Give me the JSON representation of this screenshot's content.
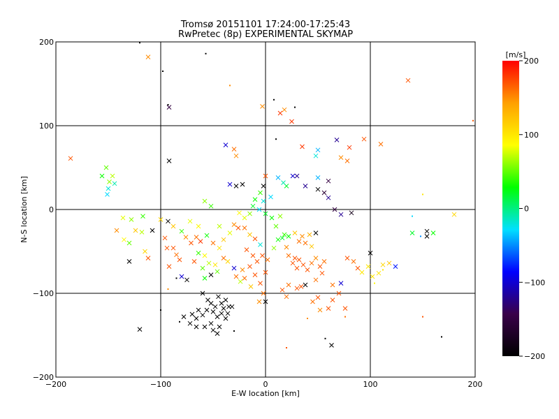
{
  "chart_data": {
    "type": "scatter",
    "title": "Tromsø 20151101 17:24:00-17:25:43",
    "subtitle": "RwPretec (8p) EXPERIMENTAL SKYMAP",
    "xlabel": "E-W location [km]",
    "ylabel": "N-S location [km]",
    "xlim": [
      -200,
      200
    ],
    "ylim": [
      -200,
      200
    ],
    "xticks": [
      -200,
      -100,
      0,
      100,
      200
    ],
    "yticks": [
      -200,
      -100,
      0,
      100,
      200
    ],
    "grid": true,
    "grid_lines": [
      -100,
      0,
      100
    ],
    "colorbar": {
      "label": "[m/s]",
      "range": [
        -200,
        200
      ],
      "ticks": [
        -200,
        -100,
        0,
        100,
        200
      ],
      "colors": [
        "#000000",
        "#3a004a",
        "#0000ff",
        "#00e0ff",
        "#00ff00",
        "#ffff00",
        "#ffa000",
        "#ff0000"
      ]
    },
    "markers": [
      "x",
      "dot"
    ],
    "points": [
      [
        -120,
        199,
        -200,
        "dot"
      ],
      [
        -112,
        182,
        150,
        "x"
      ],
      [
        -57,
        186,
        -200,
        "dot"
      ],
      [
        -98,
        165,
        -200,
        "dot"
      ],
      [
        -92,
        122,
        -150,
        "x"
      ],
      [
        -93,
        125,
        -200,
        "dot"
      ],
      [
        -34,
        148,
        150,
        "dot"
      ],
      [
        8,
        131,
        -200,
        "dot"
      ],
      [
        28,
        122,
        -200,
        "dot"
      ],
      [
        -3,
        123,
        150,
        "x"
      ],
      [
        14,
        115,
        180,
        "x"
      ],
      [
        18,
        119,
        150,
        "x"
      ],
      [
        25,
        105,
        180,
        "x"
      ],
      [
        -186,
        61,
        170,
        "x"
      ],
      [
        -92,
        58,
        -200,
        "x"
      ],
      [
        -30,
        72,
        160,
        "x"
      ],
      [
        -38,
        77,
        -100,
        "x"
      ],
      [
        -28,
        64,
        150,
        "x"
      ],
      [
        10,
        84,
        -200,
        "dot"
      ],
      [
        35,
        75,
        180,
        "x"
      ],
      [
        50,
        71,
        -40,
        "x"
      ],
      [
        68,
        83,
        -120,
        "x"
      ],
      [
        80,
        74,
        180,
        "x"
      ],
      [
        72,
        62,
        150,
        "x"
      ],
      [
        78,
        58,
        160,
        "x"
      ],
      [
        94,
        84,
        170,
        "x"
      ],
      [
        110,
        78,
        160,
        "x"
      ],
      [
        136,
        154,
        170,
        "x"
      ],
      [
        198,
        106,
        170,
        "dot"
      ],
      [
        -152,
        50,
        50,
        "x"
      ],
      [
        -156,
        40,
        30,
        "x"
      ],
      [
        -146,
        40,
        70,
        "x"
      ],
      [
        -149,
        33,
        60,
        "x"
      ],
      [
        -144,
        31,
        -10,
        "x"
      ],
      [
        -150,
        25,
        -20,
        "x"
      ],
      [
        -151,
        18,
        -30,
        "x"
      ],
      [
        -136,
        -10,
        80,
        "x"
      ],
      [
        -142,
        -25,
        150,
        "x"
      ],
      [
        -128,
        -12,
        60,
        "x"
      ],
      [
        -124,
        -25,
        120,
        "x"
      ],
      [
        -135,
        -36,
        90,
        "x"
      ],
      [
        -130,
        -40,
        50,
        "x"
      ],
      [
        -118,
        -27,
        70,
        "x"
      ],
      [
        -115,
        -50,
        110,
        "x"
      ],
      [
        -112,
        -58,
        170,
        "x"
      ],
      [
        -130,
        -62,
        -200,
        "x"
      ],
      [
        -117,
        -8,
        40,
        "x"
      ],
      [
        -108,
        -25,
        -200,
        "x"
      ],
      [
        -100,
        -12,
        110,
        "x"
      ],
      [
        -93,
        -14,
        -200,
        "x"
      ],
      [
        -88,
        -20,
        120,
        "x"
      ],
      [
        -96,
        -34,
        170,
        "x"
      ],
      [
        -94,
        -46,
        170,
        "x"
      ],
      [
        -88,
        -46,
        170,
        "x"
      ],
      [
        -85,
        -54,
        160,
        "x"
      ],
      [
        -80,
        -26,
        40,
        "x"
      ],
      [
        -76,
        -33,
        150,
        "x"
      ],
      [
        -71,
        -40,
        170,
        "x"
      ],
      [
        -66,
        -33,
        160,
        "x"
      ],
      [
        -62,
        -38,
        180,
        "x"
      ],
      [
        -68,
        -62,
        170,
        "x"
      ],
      [
        -82,
        -60,
        170,
        "x"
      ],
      [
        -92,
        -68,
        170,
        "x"
      ],
      [
        -80,
        -80,
        -100,
        "x"
      ],
      [
        -75,
        -84,
        -200,
        "x"
      ],
      [
        -85,
        -82,
        -200,
        "dot"
      ],
      [
        -93,
        -95,
        150,
        "dot"
      ],
      [
        -56,
        -31,
        30,
        "x"
      ],
      [
        -50,
        -40,
        160,
        "x"
      ],
      [
        -44,
        -46,
        100,
        "x"
      ],
      [
        -58,
        -55,
        90,
        "x"
      ],
      [
        -54,
        -64,
        70,
        "x"
      ],
      [
        -60,
        -70,
        50,
        "x"
      ],
      [
        -52,
        -78,
        -200,
        "x"
      ],
      [
        -48,
        -66,
        100,
        "x"
      ],
      [
        -40,
        -58,
        160,
        "x"
      ],
      [
        -30,
        -18,
        150,
        "x"
      ],
      [
        -26,
        -22,
        170,
        "x"
      ],
      [
        -20,
        -22,
        160,
        "x"
      ],
      [
        -15,
        -30,
        120,
        "x"
      ],
      [
        -10,
        -35,
        170,
        "x"
      ],
      [
        -5,
        -42,
        -20,
        "x"
      ],
      [
        -18,
        -48,
        170,
        "x"
      ],
      [
        -12,
        -55,
        170,
        "x"
      ],
      [
        -8,
        -62,
        170,
        "x"
      ],
      [
        -3,
        -55,
        170,
        "x"
      ],
      [
        2,
        -60,
        160,
        "x"
      ],
      [
        -15,
        -68,
        170,
        "x"
      ],
      [
        -22,
        -72,
        150,
        "x"
      ],
      [
        -30,
        -70,
        -100,
        "x"
      ],
      [
        -28,
        -80,
        160,
        "x"
      ],
      [
        -20,
        -82,
        160,
        "x"
      ],
      [
        -10,
        -78,
        170,
        "x"
      ],
      [
        0,
        -75,
        170,
        "x"
      ],
      [
        -5,
        -88,
        170,
        "x"
      ],
      [
        -2,
        -100,
        160,
        "x"
      ],
      [
        -6,
        -110,
        150,
        "x"
      ],
      [
        -60,
        -100,
        -200,
        "x"
      ],
      [
        -55,
        -108,
        -200,
        "x"
      ],
      [
        -52,
        -112,
        -200,
        "x"
      ],
      [
        -48,
        -116,
        -200,
        "x"
      ],
      [
        -45,
        -104,
        -200,
        "x"
      ],
      [
        -42,
        -112,
        -200,
        "x"
      ],
      [
        -40,
        -118,
        -200,
        "x"
      ],
      [
        -38,
        -108,
        -200,
        "x"
      ],
      [
        -35,
        -116,
        -200,
        "x"
      ],
      [
        -50,
        -122,
        -200,
        "x"
      ],
      [
        -46,
        -128,
        -200,
        "x"
      ],
      [
        -42,
        -124,
        -200,
        "x"
      ],
      [
        -38,
        -130,
        -200,
        "x"
      ],
      [
        -56,
        -120,
        -200,
        "x"
      ],
      [
        -60,
        -126,
        -200,
        "x"
      ],
      [
        -64,
        -120,
        -200,
        "x"
      ],
      [
        -66,
        -130,
        -200,
        "x"
      ],
      [
        -70,
        -125,
        -200,
        "x"
      ],
      [
        -72,
        -136,
        -200,
        "x"
      ],
      [
        -66,
        -140,
        -200,
        "x"
      ],
      [
        -58,
        -140,
        -200,
        "x"
      ],
      [
        -50,
        -144,
        -200,
        "x"
      ],
      [
        -46,
        -148,
        -200,
        "x"
      ],
      [
        -52,
        -136,
        -200,
        "x"
      ],
      [
        -44,
        -140,
        -200,
        "x"
      ],
      [
        -36,
        -124,
        -200,
        "x"
      ],
      [
        -32,
        -116,
        -200,
        "x"
      ],
      [
        -78,
        -128,
        -200,
        "x"
      ],
      [
        -82,
        -134,
        -200,
        "dot"
      ],
      [
        -120,
        -143,
        -200,
        "x"
      ],
      [
        -30,
        -145,
        -200,
        "dot"
      ],
      [
        -100,
        -120,
        -200,
        "dot"
      ],
      [
        0,
        -110,
        -200,
        "x"
      ],
      [
        -2,
        28,
        -200,
        "x"
      ],
      [
        -5,
        20,
        40,
        "x"
      ],
      [
        -10,
        12,
        30,
        "x"
      ],
      [
        -2,
        10,
        -20,
        "x"
      ],
      [
        5,
        15,
        -30,
        "x"
      ],
      [
        -12,
        4,
        20,
        "x"
      ],
      [
        -6,
        0,
        -30,
        "x"
      ],
      [
        0,
        -5,
        20,
        "x"
      ],
      [
        -15,
        -5,
        60,
        "x"
      ],
      [
        -20,
        -10,
        80,
        "x"
      ],
      [
        -25,
        -4,
        90,
        "x"
      ],
      [
        6,
        -10,
        30,
        "x"
      ],
      [
        10,
        -20,
        50,
        "x"
      ],
      [
        14,
        -8,
        60,
        "x"
      ],
      [
        18,
        -30,
        40,
        "x"
      ],
      [
        22,
        -32,
        30,
        "x"
      ],
      [
        28,
        -28,
        120,
        "x"
      ],
      [
        32,
        -38,
        160,
        "x"
      ],
      [
        38,
        -40,
        160,
        "x"
      ],
      [
        35,
        -32,
        150,
        "x"
      ],
      [
        42,
        -30,
        130,
        "x"
      ],
      [
        44,
        -44,
        120,
        "x"
      ],
      [
        48,
        -28,
        -200,
        "x"
      ],
      [
        16,
        -34,
        20,
        "x"
      ],
      [
        12,
        -36,
        30,
        "x"
      ],
      [
        8,
        -46,
        60,
        "x"
      ],
      [
        20,
        -45,
        150,
        "x"
      ],
      [
        22,
        -55,
        160,
        "x"
      ],
      [
        28,
        -58,
        170,
        "x"
      ],
      [
        26,
        -64,
        170,
        "x"
      ],
      [
        32,
        -60,
        170,
        "x"
      ],
      [
        36,
        -66,
        170,
        "x"
      ],
      [
        30,
        -70,
        170,
        "x"
      ],
      [
        40,
        -72,
        170,
        "x"
      ],
      [
        44,
        -64,
        160,
        "x"
      ],
      [
        48,
        -58,
        150,
        "x"
      ],
      [
        52,
        -68,
        170,
        "x"
      ],
      [
        56,
        -62,
        160,
        "x"
      ],
      [
        54,
        -76,
        170,
        "x"
      ],
      [
        48,
        -84,
        160,
        "x"
      ],
      [
        38,
        -90,
        -200,
        "x"
      ],
      [
        30,
        -94,
        170,
        "x"
      ],
      [
        22,
        -90,
        160,
        "x"
      ],
      [
        16,
        -96,
        170,
        "x"
      ],
      [
        20,
        -104,
        160,
        "x"
      ],
      [
        45,
        -110,
        160,
        "x"
      ],
      [
        52,
        -120,
        150,
        "x"
      ],
      [
        60,
        -118,
        170,
        "x"
      ],
      [
        64,
        -108,
        170,
        "x"
      ],
      [
        70,
        -100,
        170,
        "x"
      ],
      [
        72,
        -88,
        -100,
        "x"
      ],
      [
        64,
        -90,
        160,
        "x"
      ],
      [
        50,
        -105,
        170,
        "x"
      ],
      [
        34,
        -92,
        170,
        "x"
      ],
      [
        76,
        -118,
        170,
        "x"
      ],
      [
        76,
        -128,
        160,
        "dot"
      ],
      [
        63,
        -162,
        -200,
        "x"
      ],
      [
        57,
        -154,
        -200,
        "dot"
      ],
      [
        20,
        -165,
        170,
        "dot"
      ],
      [
        40,
        -130,
        150,
        "dot"
      ],
      [
        78,
        -58,
        170,
        "x"
      ],
      [
        84,
        -62,
        160,
        "x"
      ],
      [
        88,
        -70,
        170,
        "x"
      ],
      [
        92,
        -75,
        100,
        "x"
      ],
      [
        98,
        -68,
        100,
        "x"
      ],
      [
        102,
        -80,
        100,
        "x"
      ],
      [
        108,
        -76,
        100,
        "x"
      ],
      [
        112,
        -66,
        110,
        "x"
      ],
      [
        118,
        -64,
        120,
        "x"
      ],
      [
        124,
        -68,
        -80,
        "x"
      ],
      [
        100,
        -52,
        -200,
        "x"
      ],
      [
        112,
        -72,
        100,
        "dot"
      ],
      [
        104,
        -88,
        90,
        "dot"
      ],
      [
        154,
        -26,
        -200,
        "x"
      ],
      [
        154,
        -32,
        -200,
        "x"
      ],
      [
        140,
        -28,
        20,
        "x"
      ],
      [
        160,
        -28,
        30,
        "x"
      ],
      [
        180,
        -6,
        110,
        "x"
      ],
      [
        148,
        -32,
        -50,
        "dot"
      ],
      [
        150,
        -128,
        170,
        "dot"
      ],
      [
        168,
        -152,
        -200,
        "dot"
      ],
      [
        150,
        18,
        100,
        "dot"
      ],
      [
        140,
        -8,
        -30,
        "dot"
      ],
      [
        26,
        40,
        -100,
        "x"
      ],
      [
        30,
        40,
        -120,
        "x"
      ],
      [
        20,
        28,
        20,
        "x"
      ],
      [
        17,
        32,
        -10,
        "x"
      ],
      [
        12,
        38,
        -40,
        "x"
      ],
      [
        38,
        28,
        -120,
        "x"
      ],
      [
        50,
        24,
        -200,
        "x"
      ],
      [
        56,
        20,
        -160,
        "x"
      ],
      [
        60,
        14,
        -120,
        "x"
      ],
      [
        66,
        0,
        -150,
        "x"
      ],
      [
        72,
        -6,
        -120,
        "x"
      ],
      [
        82,
        -4,
        -180,
        "x"
      ],
      [
        60,
        34,
        -150,
        "x"
      ],
      [
        50,
        38,
        -40,
        "x"
      ],
      [
        48,
        64,
        -20,
        "x"
      ],
      [
        0,
        40,
        170,
        "x"
      ],
      [
        -22,
        30,
        -200,
        "x"
      ],
      [
        -28,
        28,
        -200,
        "x"
      ],
      [
        -34,
        30,
        -100,
        "x"
      ],
      [
        -58,
        10,
        60,
        "x"
      ],
      [
        -52,
        4,
        40,
        "x"
      ],
      [
        -72,
        -14,
        80,
        "x"
      ],
      [
        -64,
        -20,
        90,
        "x"
      ],
      [
        -44,
        -20,
        70,
        "x"
      ],
      [
        -34,
        -28,
        80,
        "x"
      ],
      [
        -40,
        -36,
        120,
        "x"
      ],
      [
        -64,
        -52,
        40,
        "x"
      ],
      [
        -36,
        -62,
        110,
        "x"
      ],
      [
        -46,
        -74,
        50,
        "x"
      ],
      [
        -58,
        -82,
        30,
        "x"
      ],
      [
        -24,
        -86,
        70,
        "x"
      ],
      [
        -14,
        -92,
        120,
        "x"
      ]
    ]
  }
}
